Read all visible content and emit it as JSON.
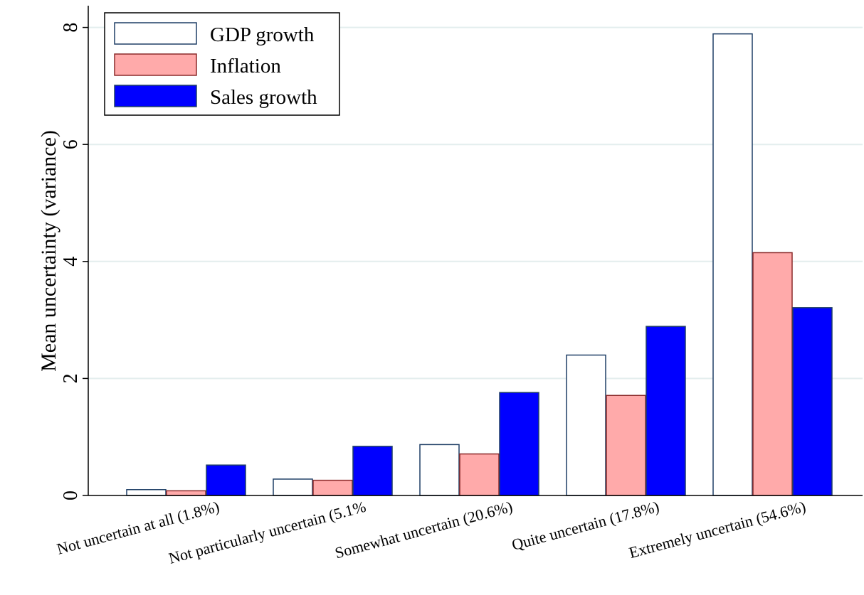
{
  "chart_data": {
    "type": "bar",
    "title": "",
    "xlabel": "",
    "ylabel": "Mean uncertainty (variance)",
    "ylim": [
      0,
      8.4
    ],
    "yticks": [
      0,
      2,
      4,
      6,
      8
    ],
    "grid": true,
    "legend_position": "top-left",
    "categories": [
      "Not uncertain at all (1.8%)",
      "Not particularly uncertain (5.1%",
      "Somewhat uncertain (20.6%)",
      "Quite uncertain (17.8%)",
      "Extremely uncertain (54.6%)"
    ],
    "series": [
      {
        "name": "GDP growth",
        "values": [
          0.1,
          0.28,
          0.87,
          2.4,
          7.89
        ],
        "fill": "#ffffff",
        "stroke": "#1f3f66"
      },
      {
        "name": "Inflation",
        "values": [
          0.08,
          0.26,
          0.71,
          1.71,
          4.15
        ],
        "fill": "#ffaaaa",
        "stroke": "#8b2a2a"
      },
      {
        "name": "Sales growth",
        "values": [
          0.52,
          0.84,
          1.76,
          2.89,
          3.21
        ],
        "fill": "#0000ff",
        "stroke": "#1f3f66"
      }
    ]
  }
}
